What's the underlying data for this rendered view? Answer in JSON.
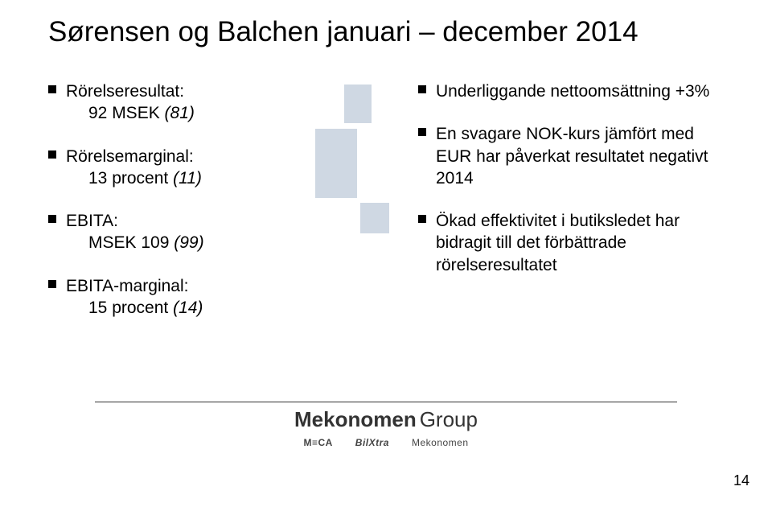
{
  "title": "Sørensen og Balchen januari – december 2014",
  "left_bullets": [
    {
      "label": "Rörelseresultat:",
      "value_prefix": "92 MSEK ",
      "value_italic": "(81)"
    },
    {
      "label": "Rörelsemarginal:",
      "value_prefix": "13 procent ",
      "value_italic": "(11)"
    },
    {
      "label": "EBITA:",
      "value_prefix": "MSEK 109 ",
      "value_italic": "(99)"
    },
    {
      "label": "EBITA-marginal:",
      "value_prefix": "15 procent ",
      "value_italic": "(14)"
    }
  ],
  "right_bullets": [
    "Underliggande nettoomsättning +3%",
    "En svagare NOK-kurs jämfört med EUR har påverkat resultatet negativt 2014",
    "Ökad effektivitet i butiksledet har bidragit till det förbättrade rörelseresultatet"
  ],
  "footer": {
    "group_name_bold": "Mekonomen",
    "group_name_light": "Group",
    "sublogos": [
      "M≡CA",
      "BilXtra",
      "Mekonomen"
    ]
  },
  "page_number": "14",
  "colors": {
    "text": "#000000",
    "background": "#ffffff",
    "deco": "#cfd8e3",
    "line": "#333333"
  }
}
